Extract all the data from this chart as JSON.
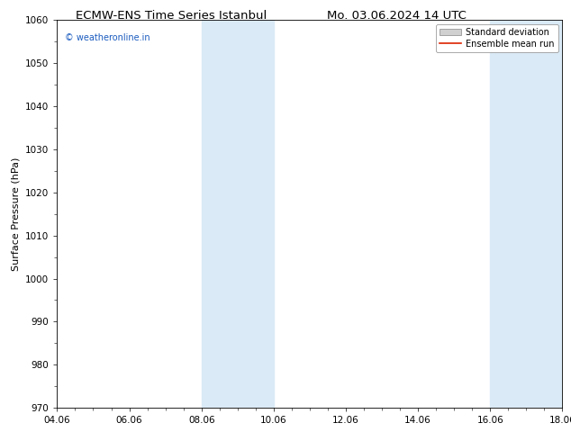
{
  "title_left": "ECMW-ENS Time Series Istanbul",
  "title_right": "Mo. 03.06.2024 14 UTC",
  "ylabel": "Surface Pressure (hPa)",
  "ylim": [
    970,
    1060
  ],
  "yticks": [
    970,
    980,
    990,
    1000,
    1010,
    1020,
    1030,
    1040,
    1050,
    1060
  ],
  "xlim_start": 0,
  "xlim_end": 14,
  "xtick_positions": [
    0,
    2,
    4,
    6,
    8,
    10,
    12,
    14
  ],
  "xtick_labels": [
    "04.06",
    "06.06",
    "08.06",
    "10.06",
    "12.06",
    "14.06",
    "16.06",
    "18.06"
  ],
  "shaded_regions": [
    {
      "xmin": 4,
      "xmax": 6,
      "color": "#daeaf6"
    },
    {
      "xmin": 12,
      "xmax": 14,
      "color": "#daeaf6"
    }
  ],
  "watermark_text": "© weatheronline.in",
  "watermark_color": "#1a5bbf",
  "legend_std_color": "#d0d0d0",
  "legend_mean_color": "#dd2200",
  "background_color": "#ffffff",
  "plot_bg_color": "#ffffff",
  "title_fontsize": 9.5,
  "ylabel_fontsize": 8.0,
  "tick_fontsize": 7.5,
  "watermark_fontsize": 7.0,
  "legend_fontsize": 7.0
}
